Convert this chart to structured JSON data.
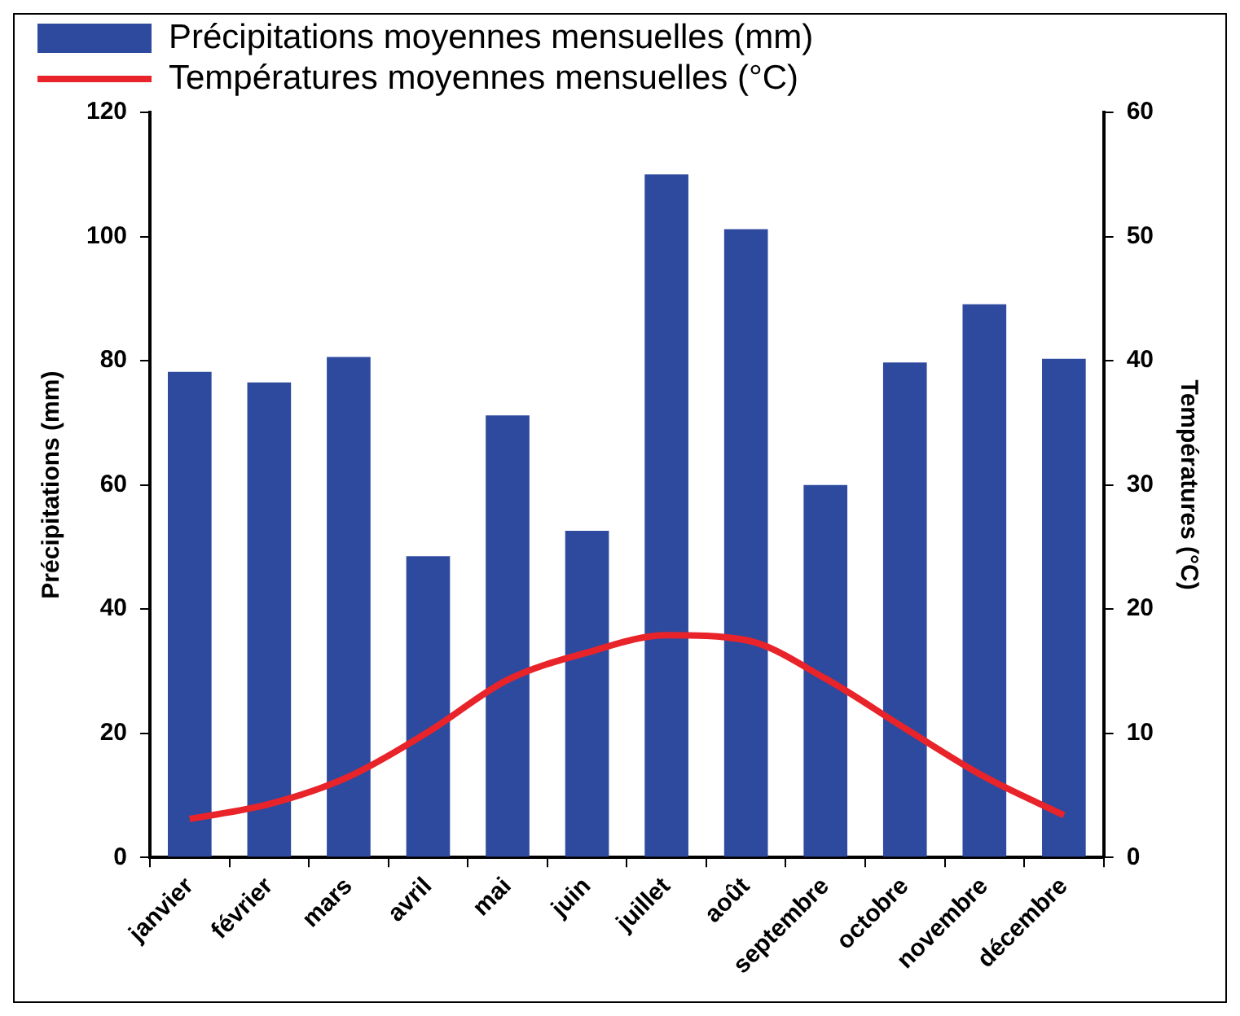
{
  "chart_data": {
    "type": "bar",
    "categories": [
      "janvier",
      "février",
      "mars",
      "avril",
      "mai",
      "juin",
      "juillet",
      "août",
      "septembre",
      "octobre",
      "novembre",
      "décembre"
    ],
    "series": [
      {
        "name": "Précipitations moyennes mensuelles (mm)",
        "color": "#2e4a9e",
        "values": [
          78.2,
          76.5,
          80.6,
          48.5,
          71.2,
          52.6,
          110,
          101.2,
          60,
          79.7,
          89.1,
          80.3
        ]
      },
      {
        "name": "Températures moyennes mensuelles (°C)",
        "type": "line",
        "axis": "y2",
        "color": "#e8242a",
        "values": [
          3.1,
          4.3,
          6.5,
          10.1,
          14.3,
          16.5,
          17.9,
          17.5,
          14.4,
          10.4,
          6.5,
          3.4
        ]
      }
    ],
    "ylabel": "Précipitations (mm)",
    "y2label": "Températures (°C)",
    "ylim": [
      0,
      120
    ],
    "yticks": [
      0,
      20,
      40,
      60,
      80,
      100,
      120
    ],
    "y2lim": [
      0,
      60
    ],
    "y2ticks": [
      0,
      10,
      20,
      30,
      40,
      50,
      60
    ],
    "grid": false,
    "legend": "top left",
    "marker": "none",
    "line_style": "solid"
  }
}
